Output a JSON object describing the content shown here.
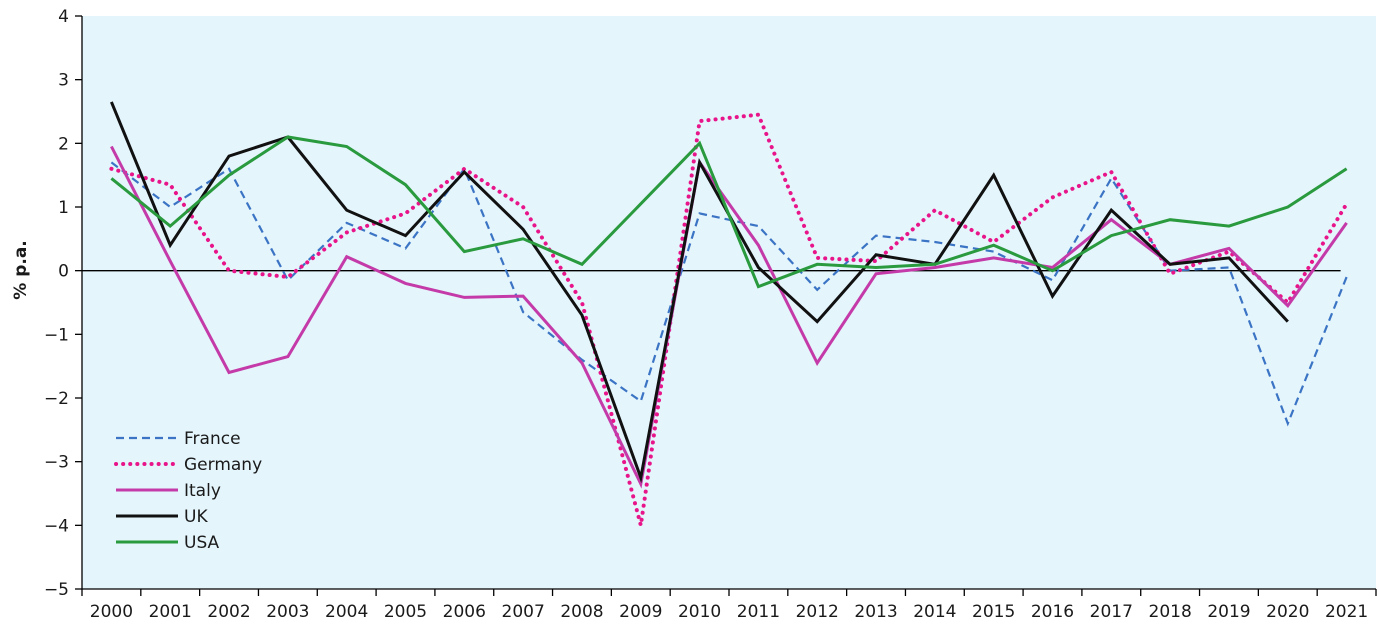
{
  "chart_data": {
    "type": "line",
    "title": "",
    "xlabel": "",
    "ylabel": "% p.a.",
    "ylim": [
      -5,
      4
    ],
    "yticks": [
      4,
      3,
      2,
      1,
      0,
      -1,
      -2,
      -3,
      -4,
      -5
    ],
    "ytick_labels": [
      "4",
      "3",
      "2",
      "1",
      "0",
      "−1",
      "−2",
      "−3",
      "−4",
      "−5"
    ],
    "x": [
      "2000",
      "2001",
      "2002",
      "2003",
      "2004",
      "2005",
      "2006",
      "2007",
      "2008",
      "2009",
      "2010",
      "2011",
      "2012",
      "2013",
      "2014",
      "2015",
      "2016",
      "2017",
      "2018",
      "2019",
      "2020",
      "2021"
    ],
    "grid": false,
    "legend_position": "bottom-left",
    "background_color": "#e4f5fc",
    "series": [
      {
        "name": "France",
        "color": "#3b74c4",
        "style": "dashed",
        "values": [
          1.7,
          1.0,
          1.6,
          -0.15,
          0.75,
          0.35,
          1.6,
          -0.65,
          -1.4,
          -2.05,
          0.9,
          0.7,
          -0.3,
          0.55,
          0.45,
          0.3,
          -0.15,
          1.45,
          0.0,
          0.05,
          -2.4,
          -0.1
        ]
      },
      {
        "name": "Germany",
        "color": "#e8158a",
        "style": "dotted",
        "values": [
          1.6,
          1.35,
          0.0,
          -0.1,
          0.6,
          0.9,
          1.6,
          1.0,
          -0.5,
          -4.0,
          2.35,
          2.45,
          0.2,
          0.15,
          0.95,
          0.45,
          1.15,
          1.55,
          -0.05,
          0.3,
          -0.5,
          1.05
        ]
      },
      {
        "name": "Italy",
        "color": "#c43aa8",
        "style": "solid",
        "values": [
          1.95,
          0.15,
          -1.6,
          -1.35,
          0.22,
          -0.2,
          -0.42,
          -0.4,
          -1.45,
          -3.35,
          1.7,
          0.4,
          -1.45,
          -0.05,
          0.05,
          0.2,
          0.05,
          0.8,
          0.1,
          0.35,
          -0.55,
          0.75
        ]
      },
      {
        "name": "UK",
        "color": "#111111",
        "style": "solid",
        "values": [
          2.65,
          0.4,
          1.8,
          2.1,
          0.95,
          0.55,
          1.55,
          0.65,
          -0.7,
          -3.25,
          1.7,
          0.05,
          -0.8,
          0.25,
          0.1,
          1.5,
          -0.4,
          0.95,
          0.1,
          0.2,
          -0.8,
          null
        ]
      },
      {
        "name": "USA",
        "color": "#2a9a3e",
        "style": "solid",
        "values": [
          1.45,
          0.7,
          1.5,
          2.1,
          1.95,
          1.35,
          0.3,
          0.5,
          0.1,
          1.05,
          2.0,
          -0.25,
          0.1,
          0.05,
          0.1,
          0.4,
          0.0,
          0.55,
          0.8,
          0.7,
          1.0,
          1.6
        ]
      }
    ]
  }
}
